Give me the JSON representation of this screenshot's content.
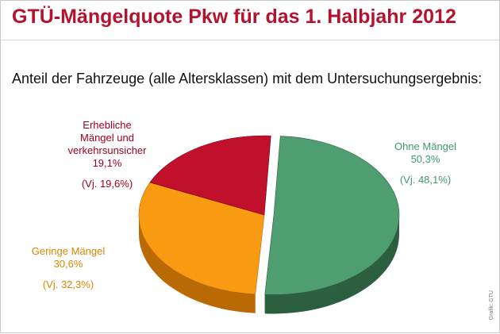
{
  "title": "GTÜ-Mängelquote Pkw für das 1. Halbjahr 2012",
  "subtitle": "Anteil der Fahrzeuge (alle Altersklassen) mit dem Untersuchungsergebnis:",
  "credit": "Grafik: GTÜ",
  "chart_data": {
    "type": "pie",
    "slices": [
      {
        "name_lines": [
          "Ohne Mängel"
        ],
        "value": 50.3,
        "value_label": "50,3%",
        "prev_label": "(Vj. 48,1%)",
        "color": "#4f9e72",
        "side_color": "#2c5e40"
      },
      {
        "name_lines": [
          "Geringe Mängel"
        ],
        "value": 30.6,
        "value_label": "30,6%",
        "prev_label": "(Vj. 32,3%)",
        "color": "#f89a12",
        "side_color": "#b96a05"
      },
      {
        "name_lines": [
          "Erhebliche",
          "Mängel und",
          "verkehrsunsicher"
        ],
        "value": 19.1,
        "value_label": "19,1%",
        "prev_label": "(Vj. 19,6%)",
        "color": "#c1102c",
        "side_color": "#6e0617"
      }
    ],
    "exploded": "Ohne Mängel",
    "label_colors": [
      "#3f9a6a",
      "#d98600",
      "#a1001e"
    ]
  }
}
